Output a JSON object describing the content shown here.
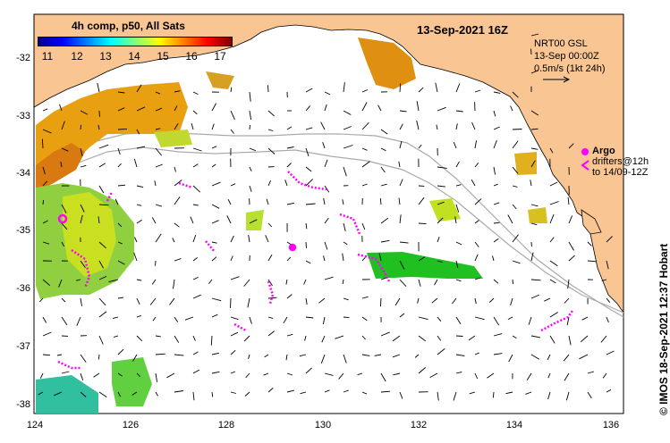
{
  "map": {
    "title": "13-Sep-2021 16Z",
    "x_axis": {
      "ticks": [
        "124",
        "126",
        "128",
        "130",
        "132",
        "134",
        "136"
      ]
    },
    "y_axis": {
      "ticks": [
        "-32",
        "-33",
        "-34",
        "-35",
        "-36",
        "-37",
        "-38"
      ]
    },
    "lon_range": [
      124,
      136.6
    ],
    "lat_range": [
      -31.4,
      -38.1
    ],
    "land_color": "#f9c593",
    "sea_color": "#ffffff"
  },
  "colorbar": {
    "title": "4h comp, p50, All Sats",
    "ticks": [
      "11",
      "12",
      "13",
      "14",
      "15",
      "16",
      "17"
    ],
    "colormap": "jet"
  },
  "velocity_info": {
    "line1": "NRT00 GSL",
    "line2": "13-Sep 00:00Z",
    "line3": "0.5m/s (1kt 24h)"
  },
  "argo": {
    "label": "Argo",
    "line2": "drifters@12h",
    "line3": "to 14/09-12Z",
    "color": "#ff00ff"
  },
  "credit": "© IMOS 18-Sep-2021 12:37 Hobart"
}
